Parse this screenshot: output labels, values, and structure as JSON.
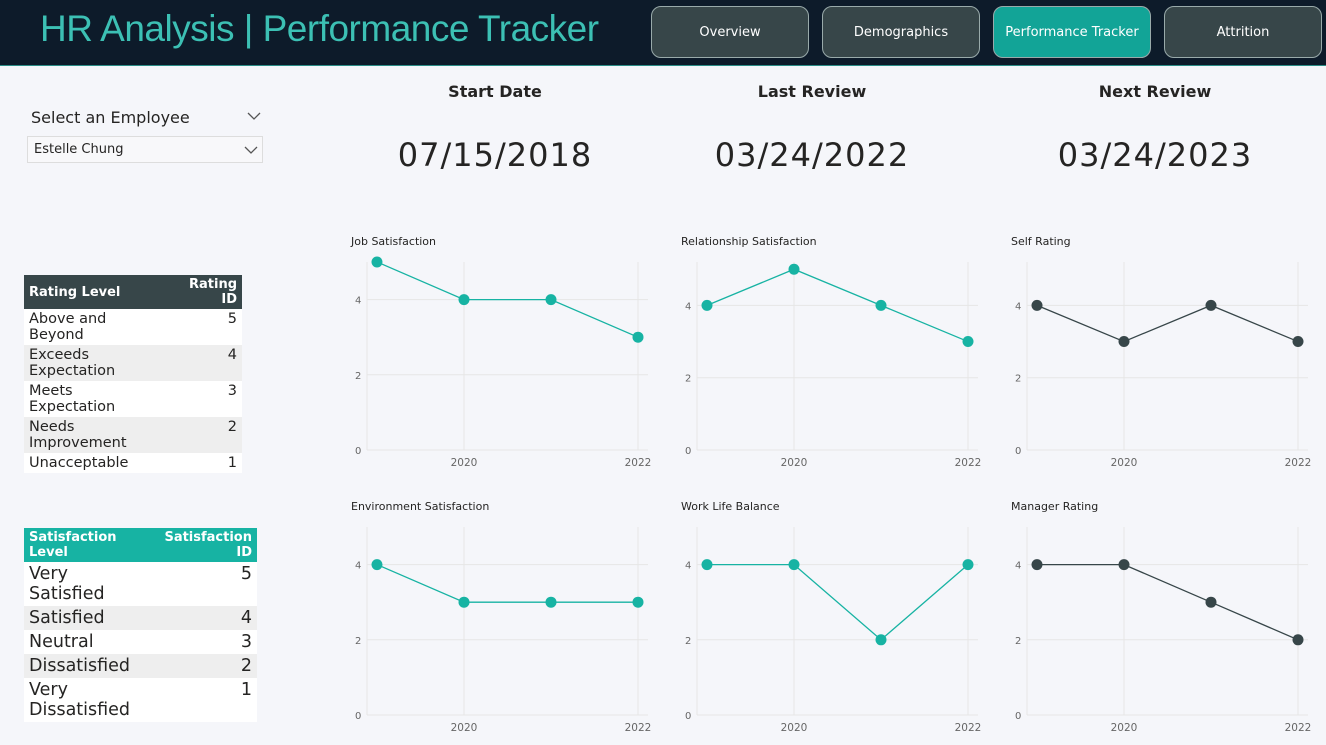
{
  "header": {
    "title": "HR Analysis | Performance Tracker"
  },
  "nav": [
    {
      "label": "Overview",
      "color": "#374649"
    },
    {
      "label": "Demographics",
      "color": "#374649"
    },
    {
      "label": "Performance Tracker",
      "color": "#12a497"
    },
    {
      "label": "Attrition",
      "color": "#374649"
    }
  ],
  "slicer": {
    "label": "Select an Employee",
    "selected": "Estelle Chung"
  },
  "cards": [
    {
      "label": "Start Date",
      "value": "07/15/2018"
    },
    {
      "label": "Last Review",
      "value": "03/24/2022"
    },
    {
      "label": "Next Review",
      "value": "03/24/2023"
    }
  ],
  "rating_table": {
    "header_color": "#374649",
    "columns": [
      "Rating Level",
      "Rating ID"
    ],
    "rows": [
      [
        "Above and Beyond",
        5
      ],
      [
        "Exceeds Expectation",
        4
      ],
      [
        "Meets Expectation",
        3
      ],
      [
        "Needs Improvement",
        2
      ],
      [
        "Unacceptable",
        1
      ]
    ]
  },
  "satisfaction_table": {
    "header_color": "#17b3a3",
    "columns": [
      "Satisfaction Level",
      "Satisfaction ID"
    ],
    "rows": [
      [
        "Very Satisfied",
        5
      ],
      [
        "Satisfied",
        4
      ],
      [
        "Neutral",
        3
      ],
      [
        "Dissatisfied",
        2
      ],
      [
        "Very Dissatisfied",
        1
      ]
    ]
  },
  "chart_data": [
    {
      "type": "line",
      "title": "Job Satisfaction",
      "x": [
        2019,
        2020,
        2021,
        2022
      ],
      "values": [
        5,
        4,
        4,
        3
      ],
      "color": "#17b3a3",
      "xlim": [
        2019,
        2022
      ],
      "xticks": [
        2020,
        2022
      ],
      "ylim": [
        0,
        5
      ],
      "yticks": [
        0,
        2,
        4
      ],
      "grid": true
    },
    {
      "type": "line",
      "title": "Relationship Satisfaction",
      "x": [
        2019,
        2020,
        2021,
        2022
      ],
      "values": [
        4,
        5,
        4,
        3
      ],
      "color": "#17b3a3",
      "xlim": [
        2019,
        2022
      ],
      "xticks": [
        2020,
        2022
      ],
      "ylim": [
        0,
        5.2
      ],
      "yticks": [
        0,
        2,
        4
      ],
      "grid": true
    },
    {
      "type": "line",
      "title": "Self Rating",
      "x": [
        2019,
        2020,
        2021,
        2022
      ],
      "values": [
        4,
        3,
        4,
        3
      ],
      "color": "#374649",
      "xlim": [
        2019,
        2022
      ],
      "xticks": [
        2020,
        2022
      ],
      "ylim": [
        0,
        5.2
      ],
      "yticks": [
        0,
        2,
        4
      ],
      "grid": true
    },
    {
      "type": "line",
      "title": "Environment Satisfaction",
      "x": [
        2019,
        2020,
        2021,
        2022
      ],
      "values": [
        4,
        3,
        3,
        3
      ],
      "color": "#17b3a3",
      "xlim": [
        2019,
        2022
      ],
      "xticks": [
        2020,
        2022
      ],
      "ylim": [
        0,
        5
      ],
      "yticks": [
        0,
        2,
        4
      ],
      "grid": true
    },
    {
      "type": "line",
      "title": "Work Life Balance",
      "x": [
        2019,
        2020,
        2021,
        2022
      ],
      "values": [
        4,
        4,
        2,
        4
      ],
      "color": "#17b3a3",
      "xlim": [
        2019,
        2022
      ],
      "xticks": [
        2020,
        2022
      ],
      "ylim": [
        0,
        5
      ],
      "yticks": [
        0,
        2,
        4
      ],
      "grid": true
    },
    {
      "type": "line",
      "title": "Manager Rating",
      "x": [
        2019,
        2020,
        2021,
        2022
      ],
      "values": [
        4,
        4,
        3,
        2
      ],
      "color": "#374649",
      "xlim": [
        2019,
        2022
      ],
      "xticks": [
        2020,
        2022
      ],
      "ylim": [
        0,
        5
      ],
      "yticks": [
        0,
        2,
        4
      ],
      "grid": true
    }
  ]
}
